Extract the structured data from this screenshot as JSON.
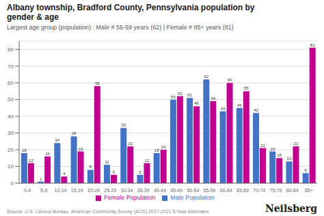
{
  "chart_data": {
    "type": "bar",
    "title": "Albany township, Bradford County, Pennsylvania population by\ngender & age",
    "subtitle": "Largest age group (population) : Male # 55-59 years (62) | Female # 85+ years (81)",
    "annotations": [
      "Source: U.S. Census Bureau, American Community Survey (ACS) 2017-2021 5-Year Estimates",
      "Neilsberg"
    ],
    "categories": [
      "0-4",
      "5-9",
      "10-14",
      "15-19",
      "20-24",
      "25-29",
      "30-34",
      "35-39",
      "40-44",
      "45-49",
      "50-54",
      "55-59",
      "60-64",
      "65-69",
      "70-74",
      "75-79",
      "80-84",
      "85+"
    ],
    "series": [
      {
        "name": "Male Population",
        "color": "#4472C4",
        "values": [
          18,
          1,
          24,
          28,
          8,
          11,
          33,
          5,
          18,
          50,
          51,
          62,
          43,
          45,
          42,
          19,
          13,
          6
        ]
      },
      {
        "name": "Female Population",
        "color": "#C0008F",
        "values": [
          12,
          16,
          4,
          19,
          58,
          5,
          22,
          12,
          20,
          52,
          46,
          49,
          60,
          55,
          21,
          15,
          22,
          81
        ]
      }
    ],
    "ylim": [
      0,
      85
    ],
    "yticks": [
      0,
      10,
      20,
      30,
      40,
      50,
      60,
      70,
      80
    ],
    "grid": true,
    "legend": "bottom",
    "data_labels": true
  }
}
